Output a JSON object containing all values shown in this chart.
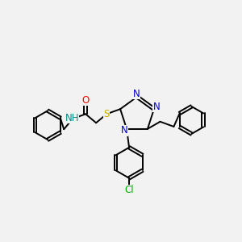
{
  "bg_color": "#f2f2f2",
  "atom_colors": {
    "N": "#0000cc",
    "O": "#ff0000",
    "S": "#ccaa00",
    "Cl": "#00aa00",
    "H": "#008888"
  },
  "bond_color": "#000000",
  "bond_width": 1.4,
  "font_size": 8.5,
  "fig_size": [
    3.0,
    3.0
  ],
  "dpi": 100
}
